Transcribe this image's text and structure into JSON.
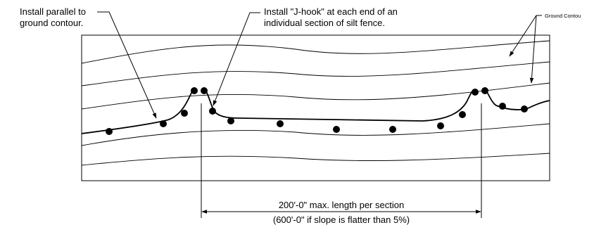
{
  "diagram": {
    "annotation_parallel": {
      "line1": "Install parallel to",
      "line2": "ground contour."
    },
    "annotation_jhook": {
      "line1": "Install \"J-hook\" at each end of an",
      "line2": "individual section of silt fence."
    },
    "annotation_contour": "Ground Contou",
    "dimension": {
      "line1": "200'-0\" max. length per section",
      "line2": "(600'-0\" if slope is flatter than 5%)"
    },
    "colors": {
      "ink": "#000000",
      "background": "#ffffff"
    }
  }
}
